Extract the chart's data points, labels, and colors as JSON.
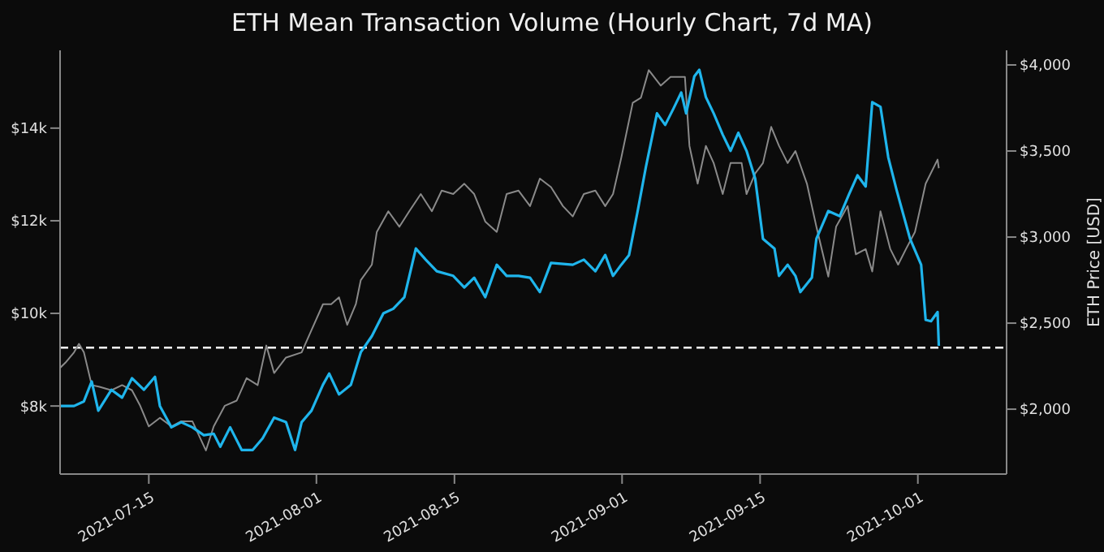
{
  "chart_data": {
    "type": "line",
    "title": "ETH Mean Transaction Volume (Hourly Chart, 7d MA)",
    "y2label": "ETH Price [USD]",
    "xlim": [
      "2021-07-06",
      "2021-10-10"
    ],
    "xticks": [
      "2021-07-15",
      "2021-08-01",
      "2021-08-15",
      "2021-09-01",
      "2021-09-15",
      "2021-10-01"
    ],
    "ylim": [
      6530,
      15680
    ],
    "yticks": [
      {
        "value": 8000,
        "label": "$8k"
      },
      {
        "value": 10000,
        "label": "$10k"
      },
      {
        "value": 12000,
        "label": "$12k"
      },
      {
        "value": 14000,
        "label": "$14k"
      }
    ],
    "y2lim": [
      1623,
      4085
    ],
    "y2ticks": [
      {
        "value": 2000,
        "label": "$2,000"
      },
      {
        "value": 2500,
        "label": "$2,500"
      },
      {
        "value": 3000,
        "label": "$3,000"
      },
      {
        "value": 3500,
        "label": "$3,500"
      },
      {
        "value": 4000,
        "label": "$4,000"
      }
    ],
    "grid": false,
    "legend": false,
    "ref_lines": [
      {
        "axis": "y",
        "value": 9260,
        "color": "#ffffff",
        "line_style": "dashed"
      }
    ],
    "series": [
      {
        "axis": "y2",
        "color": "#8a8a8a",
        "x": [
          "2021-07-06T00:00",
          "2021-07-06T13:00",
          "2021-07-07T10:00",
          "2021-07-07T22:00",
          "2021-07-08T10:00",
          "2021-07-09T05:00",
          "2021-07-10T00:00",
          "2021-07-11T05:00",
          "2021-07-12T07:00",
          "2021-07-13T07:00",
          "2021-07-14T03:00",
          "2021-07-15T00:00",
          "2021-07-16T03:00",
          "2021-07-17T07:00",
          "2021-07-18T07:00",
          "2021-07-19T10:00",
          "2021-07-20T19:00",
          "2021-07-21T14:00",
          "2021-07-22T17:00",
          "2021-07-23T22:00",
          "2021-07-24T22:00",
          "2021-07-26T01:00",
          "2021-07-26T22:00",
          "2021-07-27T17:00",
          "2021-07-28T22:00",
          "2021-07-30T12:00",
          "2021-07-31T12:00",
          "2021-08-01T16:00",
          "2021-08-02T12:00",
          "2021-08-03T07:00",
          "2021-08-04T03:00",
          "2021-08-05T00:00",
          "2021-08-05T12:00",
          "2021-08-06T15:00",
          "2021-08-07T03:00",
          "2021-08-08T07:00",
          "2021-08-09T10:00",
          "2021-08-10T10:00",
          "2021-08-11T14:00",
          "2021-08-12T17:00",
          "2021-08-13T17:00",
          "2021-08-14T21:00",
          "2021-08-16T00:00",
          "2021-08-17T00:00",
          "2021-08-18T03:00",
          "2021-08-19T07:00",
          "2021-08-20T07:00",
          "2021-08-21T12:00",
          "2021-08-22T16:00",
          "2021-08-23T16:00",
          "2021-08-24T19:00",
          "2021-08-26T00:00",
          "2021-08-27T00:00",
          "2021-08-28T03:00",
          "2021-08-29T07:00",
          "2021-08-30T07:00",
          "2021-08-31T02:00",
          "2021-08-31T22:00",
          "2021-09-02T02:00",
          "2021-09-02T22:00",
          "2021-09-03T17:00",
          "2021-09-04T22:00",
          "2021-09-05T22:00",
          "2021-09-07T09:00",
          "2021-09-07T20:00",
          "2021-09-08T16:00",
          "2021-09-09T12:00",
          "2021-09-10T07:00",
          "2021-09-11T05:00",
          "2021-09-12T00:00",
          "2021-09-13T03:00",
          "2021-09-13T15:00",
          "2021-09-14T12:00",
          "2021-09-15T07:00",
          "2021-09-16T03:00",
          "2021-09-16T22:00",
          "2021-09-17T19:00",
          "2021-09-18T14:00",
          "2021-09-19T18:00",
          "2021-09-20T17:00",
          "2021-09-21T22:00",
          "2021-09-22T17:00",
          "2021-09-23T21:00",
          "2021-09-24T17:00",
          "2021-09-25T17:00",
          "2021-09-26T09:00",
          "2021-09-27T05:00",
          "2021-09-28T05:00",
          "2021-09-29T00:00",
          "2021-09-29T19:00",
          "2021-09-30T17:00",
          "2021-10-01T19:00",
          "2021-10-03T00:00",
          "2021-10-03T03:00"
        ],
        "values": [
          2240,
          2270,
          2330,
          2380,
          2330,
          2140,
          2130,
          2110,
          2140,
          2110,
          2020,
          1900,
          1950,
          1900,
          1930,
          1930,
          1760,
          1900,
          2020,
          2050,
          2180,
          2140,
          2370,
          2210,
          2300,
          2330,
          2460,
          2610,
          2610,
          2650,
          2490,
          2610,
          2750,
          2840,
          3030,
          3150,
          3060,
          3150,
          3250,
          3150,
          3270,
          3250,
          3310,
          3250,
          3090,
          3030,
          3250,
          3270,
          3180,
          3340,
          3290,
          3180,
          3120,
          3250,
          3270,
          3180,
          3250,
          3460,
          3780,
          3810,
          3970,
          3880,
          3930,
          3930,
          3530,
          3310,
          3530,
          3430,
          3250,
          3430,
          3430,
          3250,
          3370,
          3430,
          3640,
          3530,
          3430,
          3500,
          3310,
          3060,
          2770,
          3060,
          3180,
          2900,
          2930,
          2800,
          3150,
          2930,
          2840,
          2930,
          3030,
          3310,
          3450,
          3400
        ]
      },
      {
        "axis": "y",
        "color": "#1fb5ec",
        "x": [
          "2021-07-06T00:00",
          "2021-07-07T10:00",
          "2021-07-08T10:00",
          "2021-07-09T05:00",
          "2021-07-09T21:00",
          "2021-07-11T05:00",
          "2021-07-12T07:00",
          "2021-07-13T07:00",
          "2021-07-14T12:00",
          "2021-07-15T15:00",
          "2021-07-16T03:00",
          "2021-07-17T07:00",
          "2021-07-18T07:00",
          "2021-07-19T10:00",
          "2021-07-20T14:00",
          "2021-07-21T14:00",
          "2021-07-22T06:00",
          "2021-07-23T06:00",
          "2021-07-24T10:00",
          "2021-07-25T13:00",
          "2021-07-26T13:00",
          "2021-07-27T17:00",
          "2021-07-28T22:00",
          "2021-07-29T20:00",
          "2021-07-30T12:00",
          "2021-07-31T12:00",
          "2021-08-01T16:00",
          "2021-08-02T07:00",
          "2021-08-03T07:00",
          "2021-08-04T12:00",
          "2021-08-05T12:00",
          "2021-08-06T15:00",
          "2021-08-07T19:00",
          "2021-08-08T19:00",
          "2021-08-09T22:00",
          "2021-08-11T02:00",
          "2021-08-12T02:00",
          "2021-08-13T05:00",
          "2021-08-14T21:00",
          "2021-08-16T00:00",
          "2021-08-17T00:00",
          "2021-08-18T03:00",
          "2021-08-19T07:00",
          "2021-08-20T07:00",
          "2021-08-21T12:00",
          "2021-08-22T16:00",
          "2021-08-23T16:00",
          "2021-08-24T19:00",
          "2021-08-27T00:00",
          "2021-08-28T03:00",
          "2021-08-29T07:00",
          "2021-08-30T07:00",
          "2021-08-31T02:00",
          "2021-08-31T22:00",
          "2021-09-01T17:00",
          "2021-09-02T14:00",
          "2021-09-03T10:00",
          "2021-09-04T13:00",
          "2021-09-05T09:00",
          "2021-09-06T05:00",
          "2021-09-07T00:00",
          "2021-09-07T12:00",
          "2021-09-08T08:00",
          "2021-09-08T20:00",
          "2021-09-09T12:00",
          "2021-09-10T07:00",
          "2021-09-11T05:00",
          "2021-09-12T00:00",
          "2021-09-12T19:00",
          "2021-09-13T15:00",
          "2021-09-14T12:00",
          "2021-09-15T07:00",
          "2021-09-16T11:00",
          "2021-09-16T22:00",
          "2021-09-17T19:00",
          "2021-09-18T14:00",
          "2021-09-19T02:00",
          "2021-09-20T06:00",
          "2021-09-20T17:00",
          "2021-09-21T22:00",
          "2021-09-23T02:00",
          "2021-09-24T00:00",
          "2021-09-24T21:00",
          "2021-09-25T17:00",
          "2021-09-26T09:00",
          "2021-09-27T05:00",
          "2021-09-28T00:00",
          "2021-09-28T20:00",
          "2021-09-30T05:00",
          "2021-10-01T08:00",
          "2021-10-01T19:00",
          "2021-10-02T08:00",
          "2021-10-03T00:00",
          "2021-10-03T03:00"
        ],
        "values": [
          8000,
          8000,
          8100,
          8530,
          7900,
          8350,
          8180,
          8600,
          8350,
          8630,
          8000,
          7540,
          7650,
          7540,
          7370,
          7400,
          7120,
          7540,
          7050,
          7050,
          7300,
          7750,
          7650,
          7050,
          7650,
          7900,
          8460,
          8700,
          8250,
          8460,
          9160,
          9510,
          10000,
          10100,
          10350,
          11400,
          11160,
          10910,
          10810,
          10560,
          10770,
          10350,
          11050,
          10810,
          10810,
          10770,
          10460,
          11090,
          11050,
          11160,
          10910,
          11260,
          10810,
          11050,
          11260,
          12210,
          13160,
          14320,
          14070,
          14420,
          14770,
          14320,
          15120,
          15260,
          14670,
          14320,
          13860,
          13510,
          13900,
          13510,
          12910,
          11610,
          11400,
          10810,
          11050,
          10810,
          10460,
          10770,
          11610,
          12210,
          12100,
          12560,
          12980,
          12740,
          14560,
          14460,
          13370,
          12670,
          11610,
          11050,
          9860,
          9830,
          10030,
          9300
        ]
      }
    ]
  }
}
